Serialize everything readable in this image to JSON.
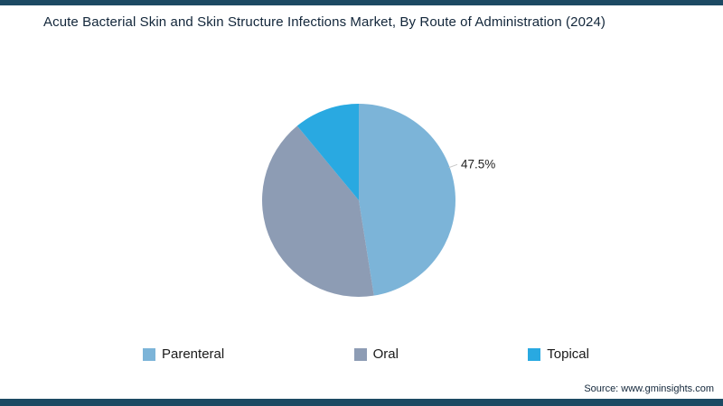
{
  "title": "Acute Bacterial Skin and Skin Structure Infections Market, By Route of Administration (2024)",
  "source": "Source: www.gminsights.com",
  "theme": {
    "border_bar_color": "#1c4a63",
    "background": "#ffffff",
    "leader_line_color": "#c9c9c9",
    "data_label_color": "#222222"
  },
  "chart_data": {
    "type": "pie",
    "title": "Acute Bacterial Skin and Skin Structure Infections Market, By Route of Administration (2024)",
    "categories": [
      "Parenteral",
      "Oral",
      "Topical"
    ],
    "values": [
      47.5,
      41.5,
      11
    ],
    "colors": [
      "#7cb4d8",
      "#8d9cb4",
      "#29a9e1"
    ],
    "data_label": {
      "slice": "Parenteral",
      "text": "47.5%"
    },
    "start_angle_deg": -90,
    "direction": "clockwise",
    "legend_position": "bottom"
  }
}
